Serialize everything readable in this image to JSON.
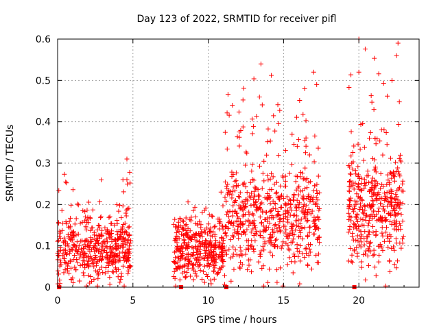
{
  "chart_data": {
    "type": "scatter",
    "title": "Day 123 of 2022, SRMTID for receiver pifl",
    "xlabel": "GPS time / hours",
    "ylabel": "SRMTID / TECUs",
    "xlim": [
      0,
      24
    ],
    "ylim": [
      0,
      0.6
    ],
    "x_ticks": [
      0,
      5,
      10,
      15,
      20
    ],
    "x_tick_labels": [
      "0",
      "5",
      "10",
      "15",
      "20"
    ],
    "y_ticks": [
      0,
      0.1,
      0.2,
      0.3,
      0.4,
      0.5,
      0.6
    ],
    "y_tick_labels": [
      "0",
      "0.1",
      "0.2",
      "0.3",
      "0.4",
      "0.5",
      "0.6"
    ],
    "grid": true,
    "marker": "+",
    "color": "#ff0000",
    "data_segments": [
      {
        "x_start": 0.0,
        "x_end": 4.9,
        "median": 0.09,
        "spread": 0.055,
        "max": 0.31,
        "count": 480
      },
      {
        "x_start": 7.7,
        "x_end": 11.1,
        "median": 0.09,
        "spread": 0.05,
        "max": 0.23,
        "count": 380
      },
      {
        "x_start": 11.1,
        "x_end": 17.4,
        "median": 0.17,
        "spread": 0.09,
        "max": 0.54,
        "count": 620
      },
      {
        "x_start": 19.3,
        "x_end": 23.0,
        "median": 0.19,
        "spread": 0.1,
        "max": 0.6,
        "count": 420
      }
    ],
    "peaks": [
      {
        "x": 4.6,
        "y": 0.31
      },
      {
        "x": 4.6,
        "y": 0.26
      },
      {
        "x": 13.5,
        "y": 0.54
      },
      {
        "x": 13.4,
        "y": 0.46
      },
      {
        "x": 11.6,
        "y": 0.44
      },
      {
        "x": 16.4,
        "y": 0.48
      },
      {
        "x": 17.0,
        "y": 0.52
      },
      {
        "x": 17.2,
        "y": 0.49
      },
      {
        "x": 20.0,
        "y": 0.6
      },
      {
        "x": 20.0,
        "y": 0.52
      },
      {
        "x": 22.6,
        "y": 0.59
      },
      {
        "x": 22.5,
        "y": 0.56
      },
      {
        "x": 22.2,
        "y": 0.5
      },
      {
        "x": 21.0,
        "y": 0.43
      }
    ],
    "baseline_points": [
      {
        "x": 0.1,
        "y": 0.0
      },
      {
        "x": 8.2,
        "y": 0.0
      },
      {
        "x": 11.2,
        "y": 0.0
      },
      {
        "x": 19.7,
        "y": 0.0
      }
    ]
  }
}
